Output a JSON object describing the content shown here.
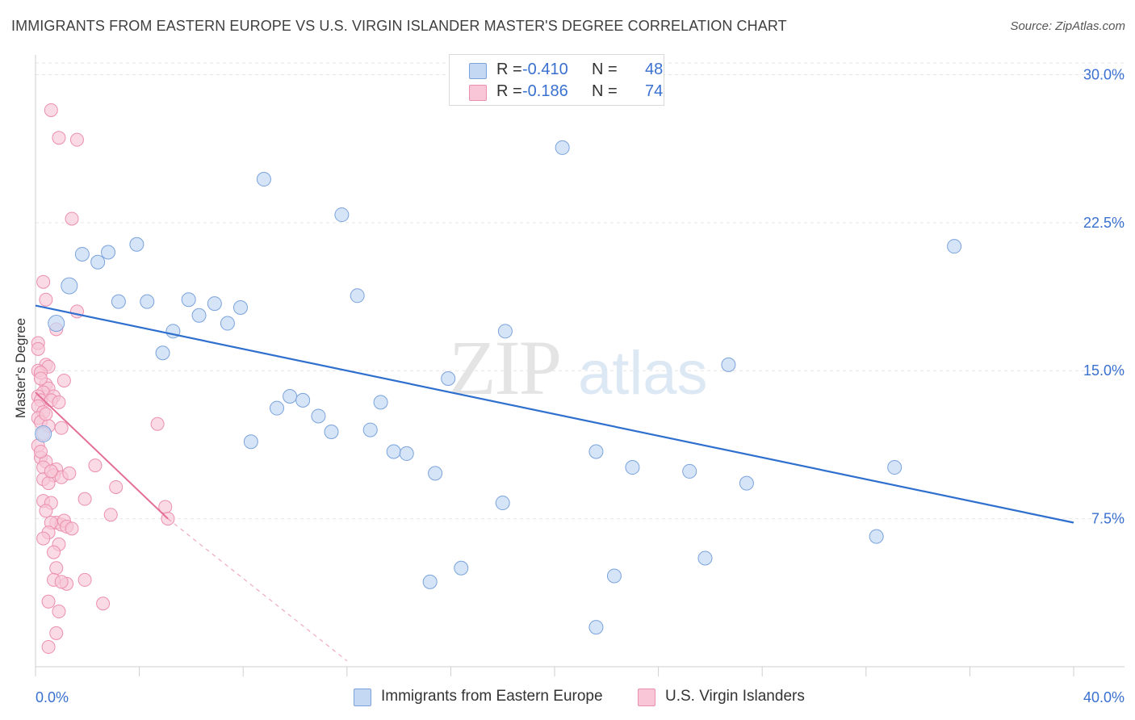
{
  "header": {
    "title": "IMMIGRANTS FROM EASTERN EUROPE VS U.S. VIRGIN ISLANDER MASTER'S DEGREE CORRELATION CHART",
    "source": "Source: ZipAtlas.com"
  },
  "watermark": {
    "zip": "ZIP",
    "atlas": "atlas"
  },
  "legend_top": {
    "rows": [
      {
        "r_label": "R =",
        "r_value": "-0.410",
        "n_label": "N =",
        "n_value": "48"
      },
      {
        "r_label": "R =",
        "r_value": "-0.186",
        "n_label": "N =",
        "n_value": "74"
      }
    ]
  },
  "legend_bottom": {
    "items": [
      {
        "label": "Immigrants from Eastern Europe"
      },
      {
        "label": "U.S. Virgin Islanders"
      }
    ]
  },
  "colors": {
    "blue_fill": "#c5d8f3",
    "blue_stroke": "#7aa3dc",
    "blue_line": "#2f6fce",
    "pink_fill": "#f8c6d6",
    "pink_stroke": "#ec8fae",
    "pink_line": "#e46f96",
    "grid": "#e6e6e6",
    "axis_text": "#3a70d0"
  },
  "chart_data": {
    "type": "scatter",
    "title": "IMMIGRANTS FROM EASTERN EUROPE VS U.S. VIRGIN ISLANDER MASTER'S DEGREE CORRELATION CHART",
    "xlabel": "",
    "ylabel": "Master's Degree",
    "xlim": [
      0,
      40
    ],
    "ylim": [
      0,
      31
    ],
    "x_tick_labels": [
      {
        "value": 0,
        "label": "0.0%"
      },
      {
        "value": 40,
        "label": "40.0%"
      }
    ],
    "y_ticks": [
      {
        "value": 7.5,
        "label": "7.5%"
      },
      {
        "value": 15,
        "label": "15.0%"
      },
      {
        "value": 22.5,
        "label": "22.5%"
      },
      {
        "value": 30,
        "label": "30.0%"
      }
    ],
    "grid": true,
    "series": [
      {
        "name": "Immigrants from Eastern Europe",
        "color": "#7aa3dc",
        "trend": {
          "x": [
            0,
            40
          ],
          "y": [
            18.3,
            7.3
          ]
        },
        "points": [
          [
            0.8,
            17.4
          ],
          [
            0.3,
            11.8
          ],
          [
            1.3,
            19.3
          ],
          [
            1.8,
            20.9
          ],
          [
            2.4,
            20.5
          ],
          [
            2.8,
            21.0
          ],
          [
            3.2,
            18.5
          ],
          [
            3.9,
            21.4
          ],
          [
            4.3,
            18.5
          ],
          [
            4.9,
            15.9
          ],
          [
            5.3,
            17.0
          ],
          [
            5.9,
            18.6
          ],
          [
            6.3,
            17.8
          ],
          [
            6.9,
            18.4
          ],
          [
            7.4,
            17.4
          ],
          [
            7.9,
            18.2
          ],
          [
            8.3,
            11.4
          ],
          [
            8.8,
            24.7
          ],
          [
            9.3,
            13.1
          ],
          [
            9.8,
            13.7
          ],
          [
            10.3,
            13.5
          ],
          [
            10.9,
            12.7
          ],
          [
            11.4,
            11.9
          ],
          [
            11.8,
            22.9
          ],
          [
            12.4,
            18.8
          ],
          [
            12.9,
            12.0
          ],
          [
            13.3,
            13.4
          ],
          [
            13.8,
            10.9
          ],
          [
            14.3,
            10.8
          ],
          [
            15.2,
            4.3
          ],
          [
            15.4,
            9.8
          ],
          [
            15.9,
            14.6
          ],
          [
            16.4,
            5.0
          ],
          [
            18.0,
            8.3
          ],
          [
            18.1,
            17.0
          ],
          [
            18.1,
            29.3
          ],
          [
            20.3,
            26.3
          ],
          [
            21.6,
            2.0
          ],
          [
            21.6,
            10.9
          ],
          [
            22.3,
            4.6
          ],
          [
            23.0,
            10.1
          ],
          [
            25.2,
            9.9
          ],
          [
            25.8,
            5.5
          ],
          [
            27.4,
            9.3
          ],
          [
            26.7,
            15.3
          ],
          [
            32.4,
            6.6
          ],
          [
            33.1,
            10.1
          ],
          [
            35.4,
            21.3
          ]
        ]
      },
      {
        "name": "U.S. Virgin Islanders",
        "color": "#ec8fae",
        "trend": {
          "x": [
            0,
            5.1
          ],
          "y": [
            13.9,
            7.5
          ]
        },
        "trend_dashed": {
          "x": [
            5.1,
            12.0
          ],
          "y": [
            7.5,
            0.3
          ]
        },
        "points": [
          [
            0.6,
            28.2
          ],
          [
            0.9,
            26.8
          ],
          [
            1.6,
            26.7
          ],
          [
            1.4,
            22.7
          ],
          [
            0.3,
            19.5
          ],
          [
            0.4,
            18.6
          ],
          [
            1.6,
            18.0
          ],
          [
            0.8,
            17.1
          ],
          [
            0.1,
            16.4
          ],
          [
            0.1,
            16.1
          ],
          [
            0.4,
            15.3
          ],
          [
            0.5,
            15.2
          ],
          [
            0.1,
            15.0
          ],
          [
            0.2,
            14.9
          ],
          [
            1.1,
            14.5
          ],
          [
            0.4,
            14.3
          ],
          [
            0.5,
            14.1
          ],
          [
            0.3,
            13.9
          ],
          [
            0.1,
            13.7
          ],
          [
            0.2,
            13.5
          ],
          [
            0.7,
            13.7
          ],
          [
            0.6,
            13.5
          ],
          [
            0.1,
            13.2
          ],
          [
            0.3,
            12.9
          ],
          [
            0.1,
            12.6
          ],
          [
            0.2,
            12.4
          ],
          [
            0.5,
            12.2
          ],
          [
            1.0,
            12.1
          ],
          [
            0.3,
            11.8
          ],
          [
            4.7,
            12.3
          ],
          [
            0.1,
            11.2
          ],
          [
            0.2,
            10.6
          ],
          [
            0.4,
            10.4
          ],
          [
            0.3,
            10.1
          ],
          [
            0.8,
            10.0
          ],
          [
            2.3,
            10.2
          ],
          [
            0.7,
            9.7
          ],
          [
            1.0,
            9.6
          ],
          [
            0.3,
            9.5
          ],
          [
            0.5,
            9.3
          ],
          [
            3.1,
            9.1
          ],
          [
            1.9,
            8.5
          ],
          [
            0.3,
            8.4
          ],
          [
            0.6,
            8.3
          ],
          [
            5.0,
            8.1
          ],
          [
            2.9,
            7.7
          ],
          [
            5.1,
            7.5
          ],
          [
            0.8,
            7.3
          ],
          [
            1.0,
            7.2
          ],
          [
            1.1,
            7.4
          ],
          [
            0.6,
            7.3
          ],
          [
            1.2,
            7.1
          ],
          [
            0.5,
            6.8
          ],
          [
            1.4,
            7.0
          ],
          [
            0.9,
            6.2
          ],
          [
            0.8,
            5.0
          ],
          [
            0.7,
            4.4
          ],
          [
            1.2,
            4.2
          ],
          [
            1.0,
            4.3
          ],
          [
            1.9,
            4.4
          ],
          [
            0.5,
            3.3
          ],
          [
            0.9,
            2.8
          ],
          [
            2.6,
            3.2
          ],
          [
            0.8,
            1.7
          ],
          [
            0.5,
            1.0
          ],
          [
            0.2,
            14.6
          ],
          [
            0.4,
            12.8
          ],
          [
            0.9,
            13.4
          ],
          [
            0.2,
            10.9
          ],
          [
            0.6,
            9.9
          ],
          [
            1.3,
            9.8
          ],
          [
            0.4,
            7.9
          ],
          [
            0.3,
            6.5
          ],
          [
            0.7,
            5.8
          ]
        ]
      }
    ]
  }
}
